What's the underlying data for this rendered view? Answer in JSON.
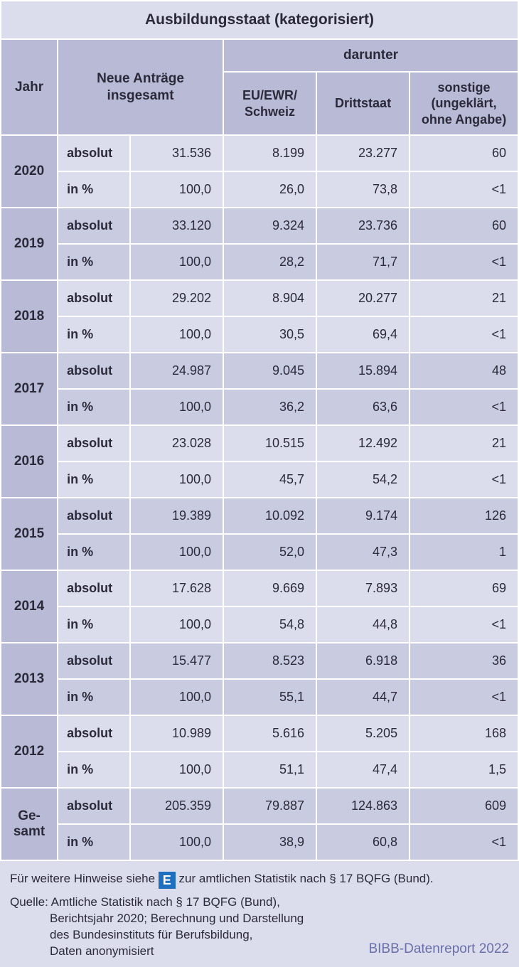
{
  "colors": {
    "title_bg": "#dbdcec",
    "header_bg": "#b9bad6",
    "row_bg_odd": "#dbdcec",
    "row_bg_even": "#c9cbe1",
    "border": "#ffffff",
    "footer_bg": "#dbdcec",
    "badge_bg": "#1f6fc0",
    "report_color": "#6a6fa8",
    "text": "#2a2a3a"
  },
  "column_widths_pct": [
    11,
    14,
    18,
    18,
    18,
    21
  ],
  "title": "Ausbildungsstaat (kategorisiert)",
  "headers": {
    "jahr": "Jahr",
    "neue_antraege": "Neue Anträge insgesamt",
    "darunter": "darunter",
    "eu": "EU/EWR/\nSchweiz",
    "drittstaat": "Drittstaat",
    "sonstige": "sonstige (ungeklärt, ohne Angabe)"
  },
  "metric_labels": {
    "absolut": "absolut",
    "pct": "in %"
  },
  "rows": [
    {
      "year": "2020",
      "absolut": [
        "31.536",
        "8.199",
        "23.277",
        "60"
      ],
      "pct": [
        "100,0",
        "26,0",
        "73,8",
        "<1"
      ]
    },
    {
      "year": "2019",
      "absolut": [
        "33.120",
        "9.324",
        "23.736",
        "60"
      ],
      "pct": [
        "100,0",
        "28,2",
        "71,7",
        "<1"
      ]
    },
    {
      "year": "2018",
      "absolut": [
        "29.202",
        "8.904",
        "20.277",
        "21"
      ],
      "pct": [
        "100,0",
        "30,5",
        "69,4",
        "<1"
      ]
    },
    {
      "year": "2017",
      "absolut": [
        "24.987",
        "9.045",
        "15.894",
        "48"
      ],
      "pct": [
        "100,0",
        "36,2",
        "63,6",
        "<1"
      ]
    },
    {
      "year": "2016",
      "absolut": [
        "23.028",
        "10.515",
        "12.492",
        "21"
      ],
      "pct": [
        "100,0",
        "45,7",
        "54,2",
        "<1"
      ]
    },
    {
      "year": "2015",
      "absolut": [
        "19.389",
        "10.092",
        "9.174",
        "126"
      ],
      "pct": [
        "100,0",
        "52,0",
        "47,3",
        "1"
      ]
    },
    {
      "year": "2014",
      "absolut": [
        "17.628",
        "9.669",
        "7.893",
        "69"
      ],
      "pct": [
        "100,0",
        "54,8",
        "44,8",
        "<1"
      ]
    },
    {
      "year": "2013",
      "absolut": [
        "15.477",
        "8.523",
        "6.918",
        "36"
      ],
      "pct": [
        "100,0",
        "55,1",
        "44,7",
        "<1"
      ]
    },
    {
      "year": "2012",
      "absolut": [
        "10.989",
        "5.616",
        "5.205",
        "168"
      ],
      "pct": [
        "100,0",
        "51,1",
        "47,4",
        "1,5"
      ]
    },
    {
      "year": "Ge-\nsamt",
      "absolut": [
        "205.359",
        "79.887",
        "124.863",
        "609"
      ],
      "pct": [
        "100,0",
        "38,9",
        "60,8",
        "<1"
      ]
    }
  ],
  "footer": {
    "hint_pre": "Für weitere Hinweise siehe ",
    "badge": "E",
    "hint_post": " zur amtlichen Statistik nach § 17 BQFG (Bund).",
    "quelle_label": "Quelle:",
    "quelle_lines": [
      "Amtliche Statistik nach § 17 BQFG (Bund),",
      "Berichtsjahr 2020; Berechnung und Darstellung",
      "des Bundesinstituts für Berufsbildung,",
      "Daten anonymisiert"
    ],
    "report": "BIBB-Datenreport 2022"
  }
}
